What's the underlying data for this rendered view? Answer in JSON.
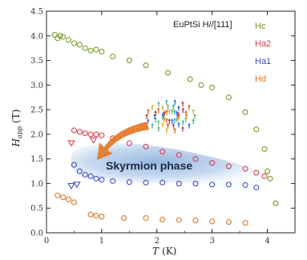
{
  "chart_data": {
    "type": "scatter",
    "annotation": "EuPtSi H//[111]",
    "xlabel": "T",
    "xunit": "(K)",
    "ylabel": "H",
    "ylabel_sub": "app",
    "yunit": "(T)",
    "xlim": [
      0,
      4.5
    ],
    "ylim": [
      0,
      4.5
    ],
    "xticks": [
      "0",
      "1",
      "2",
      "3",
      "4"
    ],
    "yticks": [
      "0.0",
      "0.5",
      "1.0",
      "1.5",
      "2.0",
      "2.5",
      "3.0",
      "3.5",
      "4.0",
      "4.5"
    ],
    "phase_label": "Skyrmion phase",
    "legend_position": "top-right",
    "series": [
      {
        "name": "Hc",
        "color": "#7a9a2e",
        "marker": "circle",
        "x": [
          0.15,
          0.2,
          0.25,
          0.3,
          0.4,
          0.5,
          0.6,
          0.7,
          0.8,
          0.9,
          1.0,
          1.2,
          1.5,
          1.8,
          2.2,
          2.6,
          2.8,
          3.0,
          3.3,
          3.6,
          3.8,
          3.95,
          4.0,
          4.05,
          4.15
        ],
        "y": [
          4.02,
          3.95,
          4.0,
          3.98,
          3.92,
          3.85,
          3.82,
          3.75,
          3.7,
          3.72,
          3.68,
          3.58,
          3.5,
          3.4,
          3.25,
          3.12,
          3.0,
          2.95,
          2.75,
          2.45,
          2.1,
          1.7,
          1.25,
          1.1,
          0.6
        ]
      },
      {
        "name": "Ha2",
        "color": "#d9404e",
        "marker": "circle",
        "x": [
          0.5,
          0.6,
          0.7,
          0.8,
          0.9,
          1.0,
          1.2,
          1.5,
          1.8,
          2.1,
          2.4,
          2.7,
          3.0,
          3.3,
          3.6,
          3.8,
          3.95
        ],
        "y": [
          2.08,
          2.05,
          2.02,
          2.0,
          2.0,
          1.98,
          1.92,
          1.82,
          1.75,
          1.65,
          1.58,
          1.5,
          1.42,
          1.35,
          1.3,
          1.22,
          1.15
        ]
      },
      {
        "name": "Ha2 (triangle)",
        "color": "#d9404e",
        "marker": "triangle",
        "x": [
          0.45,
          0.85
        ],
        "y": [
          1.82,
          1.88
        ]
      },
      {
        "name": "Ha1",
        "color": "#3a4fc7",
        "marker": "circle",
        "x": [
          0.5,
          0.6,
          0.7,
          0.8,
          0.9,
          1.0,
          1.2,
          1.5,
          1.8,
          2.1,
          2.4,
          2.7,
          3.0,
          3.3,
          3.6,
          3.8
        ],
        "y": [
          1.38,
          1.25,
          1.18,
          1.15,
          1.1,
          1.08,
          1.05,
          1.03,
          1.02,
          1.02,
          1.0,
          1.0,
          0.98,
          0.98,
          0.97,
          0.92
        ]
      },
      {
        "name": "Ha1 (triangle)",
        "color": "#3a4fc7",
        "marker": "triangle",
        "x": [
          0.45,
          0.55
        ],
        "y": [
          0.95,
          0.98
        ]
      },
      {
        "name": "Hd",
        "color": "#d9772b",
        "marker": "circle",
        "x": [
          0.2,
          0.3,
          0.4,
          0.5,
          0.8,
          0.9,
          1.0,
          1.4,
          1.8,
          2.1,
          2.4,
          2.7,
          3.0,
          3.3,
          3.6
        ],
        "y": [
          0.76,
          0.72,
          0.68,
          0.62,
          0.37,
          0.35,
          0.33,
          0.3,
          0.3,
          0.27,
          0.26,
          0.25,
          0.23,
          0.22,
          0.2
        ]
      }
    ],
    "legend": [
      {
        "label": "Hc",
        "color": "#7a9a2e"
      },
      {
        "label": "Ha2",
        "color": "#d9404e"
      },
      {
        "label": "Ha1",
        "color": "#3a4fc7"
      },
      {
        "label": "Hd",
        "color": "#d9772b"
      }
    ]
  }
}
